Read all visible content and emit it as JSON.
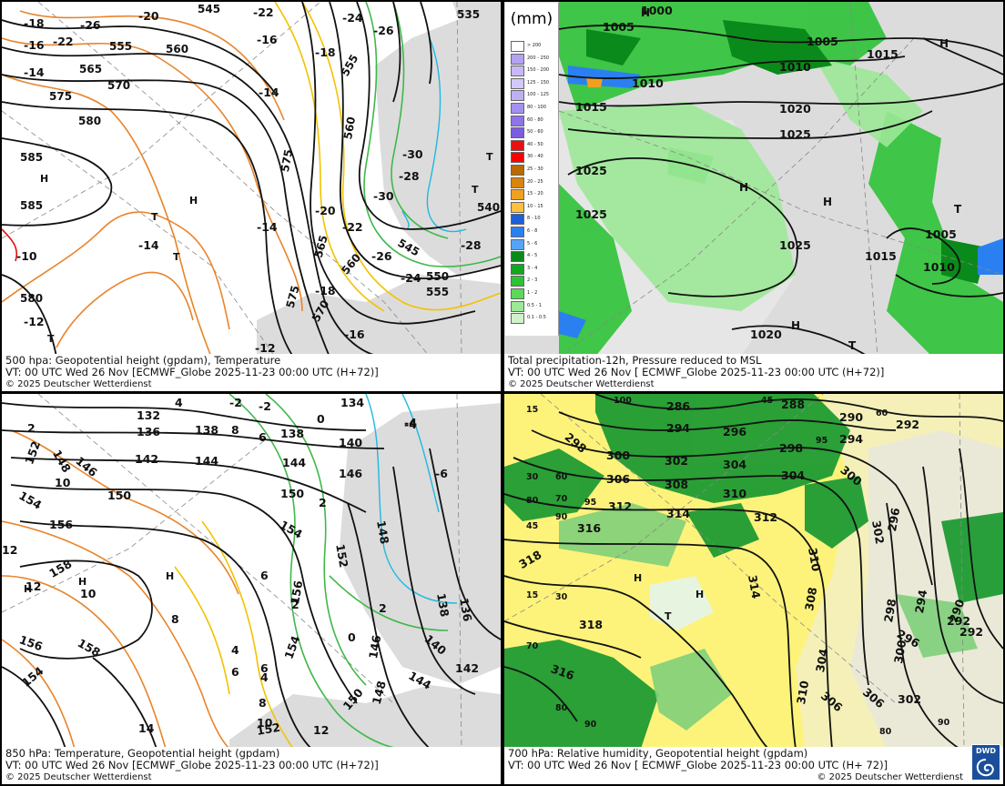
{
  "panels": [
    {
      "caption": {
        "line1": "500 hpa: Geopotential height (gpdam), Temperature",
        "line2": "VT: 00 UTC Wed  26 Nov [ECMWF_Globe 2025-11-23 00:00 UTC (H+72)]",
        "line3": "© 2025 Deutscher Wetterdienst"
      },
      "height_labels": [
        "545",
        "555",
        "560",
        "565",
        "570",
        "575",
        "580",
        "585",
        "585",
        "580",
        "575",
        "575",
        "570",
        "565",
        "560",
        "555",
        "550",
        "545",
        "540",
        "535",
        "560",
        "555"
      ],
      "temp_labels": [
        "-18",
        "-16",
        "-14",
        "-26",
        "-20",
        "-22",
        "-22",
        "-16",
        "-14",
        "-18",
        "-24",
        "-26",
        "-30",
        "-28",
        "-30",
        "-20",
        "-22",
        "-14",
        "-14",
        "-24",
        "-26",
        "-28",
        "-18",
        "-16",
        "-12",
        "-12",
        "-10"
      ],
      "symbols": [
        "H",
        "T",
        "T",
        "T",
        "H",
        "T",
        "T"
      ]
    },
    {
      "caption": {
        "line1": "Total precipitation-12h, Pressure reduced to MSL",
        "line2": "VT: 00 UTC Wed  26 Nov [ ECMWF_Globe 2025-11-23 00:00 UTC (H+72)]",
        "line3": "© 2025 Deutscher Wetterdienst"
      },
      "legend": {
        "title": "(mm)",
        "entries": [
          {
            "label": "> 200",
            "color": "#ffffff"
          },
          {
            "label": "200 - 250",
            "color": "#b3a2f2"
          },
          {
            "label": "150 - 200",
            "color": "#c9b8f7"
          },
          {
            "label": "125 - 150",
            "color": "#d4c8f9"
          },
          {
            "label": "100 - 125",
            "color": "#bfb0f4"
          },
          {
            "label": "80 - 100",
            "color": "#a58ff0"
          },
          {
            "label": "60 - 80",
            "color": "#8f73e8"
          },
          {
            "label": "50 - 60",
            "color": "#7c5de2"
          },
          {
            "label": "40 - 50",
            "color": "#e81010"
          },
          {
            "label": "30 - 40",
            "color": "#ff0000"
          },
          {
            "label": "25 - 30",
            "color": "#b86a00"
          },
          {
            "label": "20 - 25",
            "color": "#d9840a"
          },
          {
            "label": "15 - 20",
            "color": "#f0a020"
          },
          {
            "label": "10 - 15",
            "color": "#ffbf40"
          },
          {
            "label": "8 - 10",
            "color": "#1d5fd8"
          },
          {
            "label": "6 - 8",
            "color": "#2a80f0"
          },
          {
            "label": "5 - 6",
            "color": "#56a4f6"
          },
          {
            "label": "4 - 5",
            "color": "#0a8a1a"
          },
          {
            "label": "3 - 4",
            "color": "#12a820"
          },
          {
            "label": "2 - 3",
            "color": "#2ec236"
          },
          {
            "label": "1 - 2",
            "color": "#5cd85a"
          },
          {
            "label": "0.5 - 1",
            "color": "#9be896"
          },
          {
            "label": "0.1 - 0.5",
            "color": "#cff2c9"
          }
        ]
      },
      "pressure_labels": [
        "1000",
        "1005",
        "1010",
        "1015",
        "1005",
        "1010",
        "1015",
        "1020",
        "1025",
        "1025",
        "1025",
        "1025",
        "1015",
        "1005",
        "1010",
        "1020"
      ],
      "symbols": [
        "H",
        "H",
        "H",
        "T",
        "H",
        "T",
        "H"
      ]
    },
    {
      "caption": {
        "line1": "850 hPa:  Temperature, Geopotential height (gpdam)",
        "line2": "VT: 00 UTC Wed  26 Nov [ECMWF_Globe 2025-11-23 00:00 UTC (H+72)]",
        "line3": "© 2025 Deutscher Wetterdienst"
      },
      "height_labels": [
        "132",
        "134",
        "136",
        "138",
        "138",
        "140",
        "142",
        "144",
        "144",
        "146",
        "146",
        "148",
        "150",
        "150",
        "152",
        "152",
        "154",
        "154",
        "154",
        "156",
        "156",
        "158",
        "158",
        "156",
        "148",
        "146",
        "148",
        "144",
        "142",
        "140",
        "138",
        "136",
        "150",
        "152",
        "154"
      ],
      "temp_labels": [
        "-2",
        "-2",
        "0",
        "-4",
        "2",
        "4",
        "6",
        "8",
        "6",
        "2",
        "2",
        "-6",
        "10",
        "12",
        "10",
        "12",
        "8",
        "6",
        "4",
        "2",
        "6",
        "4",
        "8",
        "10",
        "12",
        "14",
        "0",
        "-4"
      ],
      "symbols": [
        "H",
        "H",
        "H"
      ]
    },
    {
      "caption": {
        "line1": "700 hPa:  Relative humidity, Geopotential height (gpdam)",
        "line2": "VT: 00 UTC Wed  26 Nov [ ECMWF_Globe 2025-11-23 00:00 UTC (H+ 72)]",
        "line3": "© 2025 Deutscher Wetterdienst"
      },
      "height_labels": [
        "286",
        "288",
        "290",
        "292",
        "292",
        "294",
        "294",
        "296",
        "298",
        "298",
        "300",
        "300",
        "302",
        "304",
        "304",
        "306",
        "306",
        "308",
        "310",
        "310",
        "312",
        "312",
        "314",
        "314",
        "316",
        "316",
        "318",
        "318",
        "302",
        "296",
        "294",
        "290",
        "292",
        "298",
        "300",
        "296",
        "302",
        "304",
        "306",
        "308",
        "310"
      ],
      "rh_labels": [
        "100",
        "45",
        "15",
        "30",
        "60",
        "80",
        "70",
        "95",
        "45",
        "90",
        "30",
        "15",
        "70",
        "80",
        "90",
        "95",
        "60",
        "80",
        "90"
      ],
      "symbols": [
        "H",
        "H",
        "T"
      ],
      "logo_text": "DWD"
    }
  ],
  "colors": {
    "contour_black": "#111111",
    "land_gray": "#dcdcdc",
    "sea_white": "#ffffff",
    "temp_orange": "#e8842a",
    "temp_yellow": "#f2c200",
    "temp_green": "#3fb84a",
    "temp_cyan": "#20b8e0",
    "temp_red": "#e21010",
    "rh_yellow": "#fdf37a",
    "rh_green": "#1f9b33",
    "dwd_blue": "#1b4f9c"
  }
}
